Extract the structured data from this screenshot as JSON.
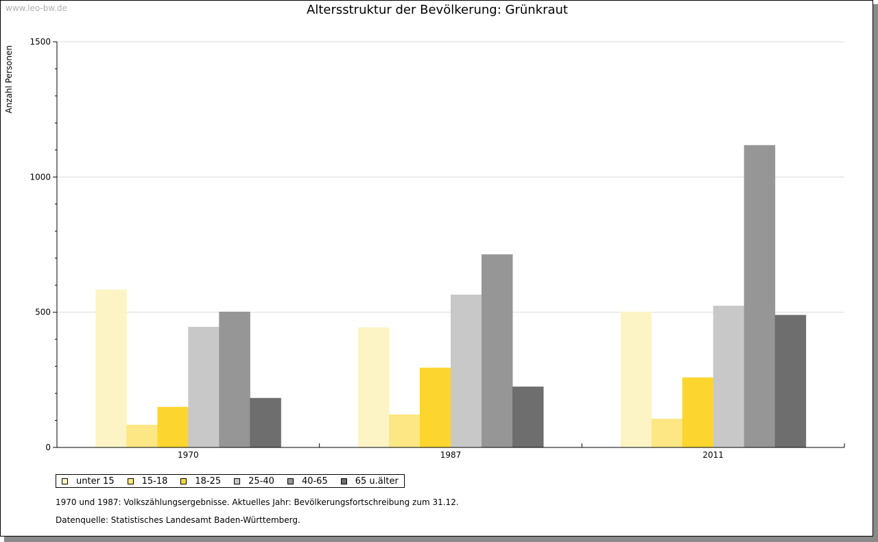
{
  "watermark": "www.leo-bw.de",
  "chart_data": {
    "type": "bar",
    "title": "Altersstruktur der Bevölkerung: Grünkraut",
    "xlabel": "",
    "ylabel": "Anzahl Personen",
    "ylim": [
      0,
      1500
    ],
    "yticks": [
      0,
      500,
      1000,
      1500
    ],
    "grid": true,
    "categories": [
      "1970",
      "1987",
      "2011"
    ],
    "series": [
      {
        "name": "unter 15",
        "color": "#fcf4c4",
        "values": [
          584,
          444,
          502
        ]
      },
      {
        "name": "15-18",
        "color": "#fce784",
        "values": [
          84,
          122,
          106
        ]
      },
      {
        "name": "18-25",
        "color": "#fcd62f",
        "values": [
          150,
          295,
          259
        ]
      },
      {
        "name": "25-40",
        "color": "#c8c8c8",
        "values": [
          446,
          565,
          524
        ]
      },
      {
        "name": "40-65",
        "color": "#969696",
        "values": [
          502,
          714,
          1118
        ]
      },
      {
        "name": "65 u.älter",
        "color": "#6e6e6e",
        "values": [
          183,
          225,
          490
        ]
      }
    ],
    "legend_position": "bottom-left"
  },
  "notes": {
    "line1": "1970 und 1987: Volkszählungsergebnisse. Aktuelles Jahr: Bevölkerungsfortschreibung zum 31.12.",
    "line2": "Datenquelle: Statistisches Landesamt Baden-Württemberg."
  }
}
